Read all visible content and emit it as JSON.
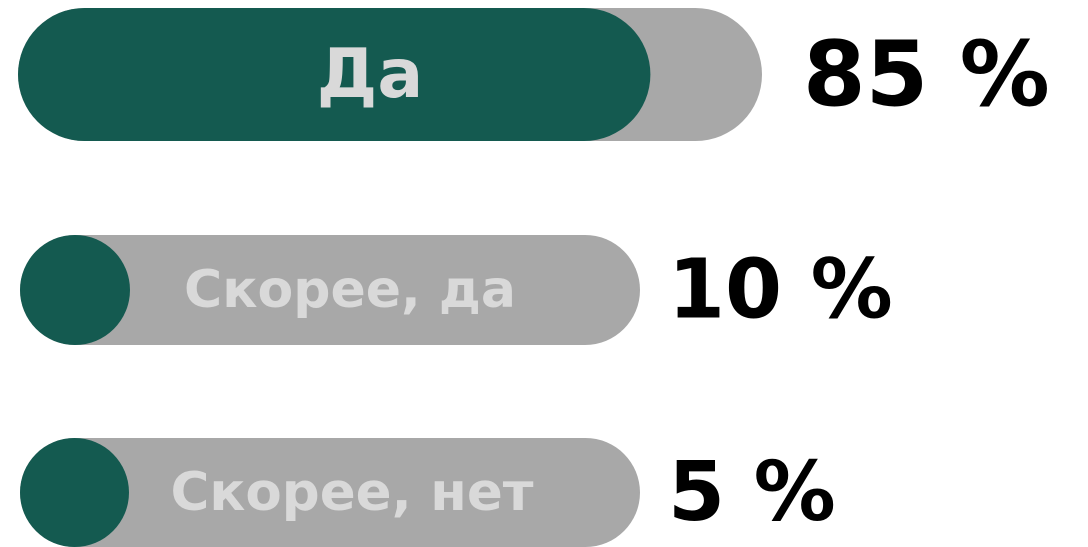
{
  "chart_data": {
    "type": "progress-bar",
    "categories": [
      "Да",
      "Скорее, да",
      "Скорее, нет"
    ],
    "values": [
      85,
      10,
      5
    ],
    "value_labels": [
      "85 %",
      "10 %",
      "5 %"
    ],
    "xlim": [
      0,
      100
    ],
    "color": "#145a50",
    "track_color": "#a8a8a8"
  }
}
